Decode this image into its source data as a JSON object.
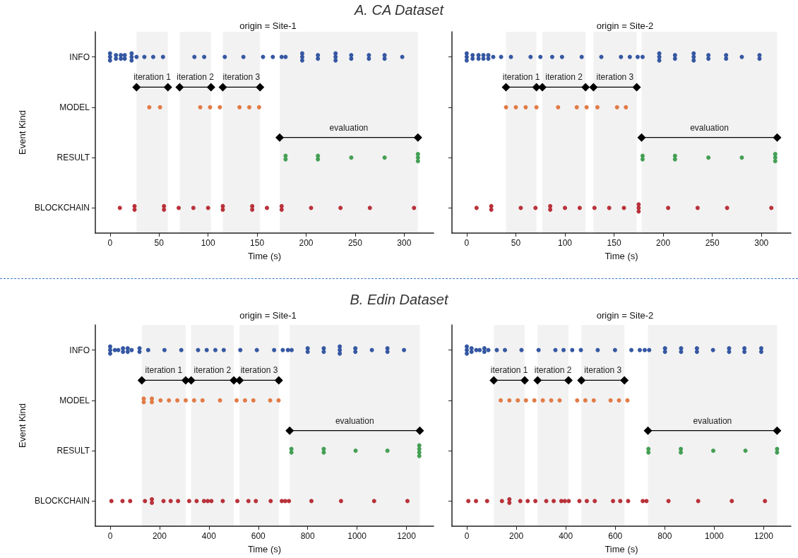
{
  "chart_data": [
    {
      "type": "scatter",
      "title": "origin = Site-1",
      "annotations": [
        "A. CA Dataset"
      ],
      "xlabel": "Time (s)",
      "ylabel": "Event Kind",
      "categories": [
        "INFO",
        "MODEL",
        "RESULT",
        "BLOCKCHAIN"
      ],
      "orientation": "horizontal",
      "xlim": [
        -15,
        330
      ],
      "xticks": [
        0,
        50,
        100,
        150,
        200,
        250,
        300
      ],
      "marker": "circle",
      "series": [
        {
          "color": "#2b4f9e",
          "values": [
            0,
            0,
            0,
            6,
            6,
            11,
            11,
            15,
            15,
            22,
            22,
            22,
            27,
            35,
            44,
            54,
            86,
            96,
            117,
            136,
            156,
            166,
            175,
            179,
            196,
            196,
            196,
            212,
            212,
            230,
            230,
            230,
            246,
            246,
            264,
            264,
            280,
            280,
            298
          ],
          "x": [
            "INFO",
            "INFO",
            "INFO",
            "INFO",
            "INFO",
            "INFO",
            "INFO",
            "INFO",
            "INFO",
            "INFO",
            "INFO",
            "INFO",
            "INFO",
            "INFO",
            "INFO",
            "INFO",
            "INFO",
            "INFO",
            "INFO",
            "INFO",
            "INFO",
            "INFO",
            "INFO",
            "INFO",
            "INFO",
            "INFO",
            "INFO",
            "INFO",
            "INFO",
            "INFO",
            "INFO",
            "INFO",
            "INFO",
            "INFO",
            "INFO",
            "INFO",
            "INFO",
            "INFO",
            "INFO"
          ]
        },
        {
          "color": "#e0743c",
          "values": [
            40,
            51,
            92,
            102,
            112,
            132,
            142,
            152
          ],
          "x": [
            "MODEL",
            "MODEL",
            "MODEL",
            "MODEL",
            "MODEL",
            "MODEL",
            "MODEL",
            "MODEL"
          ]
        },
        {
          "color": "#3b9a4c",
          "values": [
            179,
            179,
            212,
            212,
            246,
            280,
            314,
            314,
            314
          ],
          "x": [
            "RESULT",
            "RESULT",
            "RESULT",
            "RESULT",
            "RESULT",
            "RESULT",
            "RESULT",
            "RESULT",
            "RESULT"
          ]
        },
        {
          "color": "#b5272f",
          "values": [
            10,
            25,
            25,
            55,
            55,
            70,
            85,
            100,
            115,
            115,
            145,
            145,
            160,
            175,
            175,
            205,
            235,
            265,
            310
          ],
          "x": [
            "BLOCKCHAIN",
            "BLOCKCHAIN",
            "BLOCKCHAIN",
            "BLOCKCHAIN",
            "BLOCKCHAIN",
            "BLOCKCHAIN",
            "BLOCKCHAIN",
            "BLOCKCHAIN",
            "BLOCKCHAIN",
            "BLOCKCHAIN",
            "BLOCKCHAIN",
            "BLOCKCHAIN",
            "BLOCKCHAIN",
            "BLOCKCHAIN",
            "BLOCKCHAIN",
            "BLOCKCHAIN",
            "BLOCKCHAIN",
            "BLOCKCHAIN",
            "BLOCKCHAIN"
          ]
        }
      ],
      "bands": [
        {
          "axis": "x",
          "from": 27,
          "to": 59,
          "label": "iteration 1",
          "color": "#000000"
        },
        {
          "axis": "x",
          "from": 71,
          "to": 103,
          "label": "iteration 2",
          "color": "#000000"
        },
        {
          "axis": "x",
          "from": 115,
          "to": 153,
          "label": "iteration 3",
          "color": "#000000"
        },
        {
          "axis": "x",
          "from": 173,
          "to": 314,
          "label": "evaluation",
          "color": "#000000"
        }
      ]
    },
    {
      "type": "scatter",
      "title": "origin = Site-2",
      "xlabel": "Time (s)",
      "categories": [
        "INFO",
        "MODEL",
        "RESULT",
        "BLOCKCHAIN"
      ],
      "orientation": "horizontal",
      "xlim": [
        -15,
        330
      ],
      "xticks": [
        0,
        50,
        100,
        150,
        200,
        250,
        300
      ],
      "marker": "circle",
      "tick_labels": "x",
      "series": [
        {
          "color": "#2b4f9e",
          "values": [
            0,
            0,
            0,
            6,
            6,
            12,
            12,
            17,
            17,
            22,
            22,
            27,
            35,
            45,
            65,
            75,
            87,
            97,
            117,
            137,
            157,
            166,
            174,
            179,
            196,
            196,
            196,
            212,
            212,
            231,
            231,
            231,
            246,
            246,
            264,
            264,
            280,
            298,
            298
          ],
          "x": [
            "INFO",
            "INFO",
            "INFO",
            "INFO",
            "INFO",
            "INFO",
            "INFO",
            "INFO",
            "INFO",
            "INFO",
            "INFO",
            "INFO",
            "INFO",
            "INFO",
            "INFO",
            "INFO",
            "INFO",
            "INFO",
            "INFO",
            "INFO",
            "INFO",
            "INFO",
            "INFO",
            "INFO",
            "INFO",
            "INFO",
            "INFO",
            "INFO",
            "INFO",
            "INFO",
            "INFO",
            "INFO",
            "INFO",
            "INFO",
            "INFO",
            "INFO",
            "INFO",
            "INFO",
            "INFO"
          ]
        },
        {
          "color": "#e0743c",
          "values": [
            40,
            50,
            60,
            71,
            93,
            112,
            122,
            133,
            153,
            162
          ],
          "x": [
            "MODEL",
            "MODEL",
            "MODEL",
            "MODEL",
            "MODEL",
            "MODEL",
            "MODEL",
            "MODEL",
            "MODEL",
            "MODEL"
          ]
        },
        {
          "color": "#3b9a4c",
          "values": [
            179,
            179,
            212,
            212,
            246,
            280,
            314,
            314,
            314
          ],
          "x": [
            "RESULT",
            "RESULT",
            "RESULT",
            "RESULT",
            "RESULT",
            "RESULT",
            "RESULT",
            "RESULT",
            "RESULT"
          ]
        },
        {
          "color": "#b5272f",
          "values": [
            10,
            25,
            25,
            55,
            70,
            85,
            85,
            100,
            115,
            130,
            145,
            160,
            175,
            175,
            175,
            205,
            235,
            265,
            310
          ],
          "x": [
            "BLOCKCHAIN",
            "BLOCKCHAIN",
            "BLOCKCHAIN",
            "BLOCKCHAIN",
            "BLOCKCHAIN",
            "BLOCKCHAIN",
            "BLOCKCHAIN",
            "BLOCKCHAIN",
            "BLOCKCHAIN",
            "BLOCKCHAIN",
            "BLOCKCHAIN",
            "BLOCKCHAIN",
            "BLOCKCHAIN",
            "BLOCKCHAIN",
            "BLOCKCHAIN",
            "BLOCKCHAIN",
            "BLOCKCHAIN",
            "BLOCKCHAIN",
            "BLOCKCHAIN"
          ]
        }
      ],
      "bands": [
        {
          "axis": "x",
          "from": 40,
          "to": 71,
          "label": "iteration 1",
          "color": "#000000"
        },
        {
          "axis": "x",
          "from": 77,
          "to": 121,
          "label": "iteration 2",
          "color": "#000000"
        },
        {
          "axis": "x",
          "from": 129,
          "to": 173,
          "label": "iteration 3",
          "color": "#000000"
        },
        {
          "axis": "x",
          "from": 178,
          "to": 316,
          "label": "evaluation",
          "color": "#000000"
        }
      ]
    },
    {
      "type": "scatter",
      "title": "origin = Site-1",
      "annotations": [
        "B. Edin Dataset"
      ],
      "xlabel": "Time (s)",
      "ylabel": "Event Kind",
      "categories": [
        "INFO",
        "MODEL",
        "RESULT",
        "BLOCKCHAIN"
      ],
      "orientation": "horizontal",
      "xlim": [
        -60,
        1310
      ],
      "xticks": [
        0,
        200,
        400,
        600,
        800,
        1000,
        1200
      ],
      "marker": "circle",
      "series": [
        {
          "color": "#2b4f9e",
          "values": [
            0,
            0,
            0,
            19,
            33,
            52,
            52,
            71,
            71,
            87,
            119,
            119,
            154,
            220,
            288,
            356,
            391,
            426,
            460,
            527,
            594,
            664,
            699,
            720,
            735,
            800,
            800,
            865,
            865,
            930,
            930,
            930,
            993,
            993,
            1060,
            1123,
            1123,
            1190
          ],
          "x": [
            "INFO",
            "INFO",
            "INFO",
            "INFO",
            "INFO",
            "INFO",
            "INFO",
            "INFO",
            "INFO",
            "INFO",
            "INFO",
            "INFO",
            "INFO",
            "INFO",
            "INFO",
            "INFO",
            "INFO",
            "INFO",
            "INFO",
            "INFO",
            "INFO",
            "INFO",
            "INFO",
            "INFO",
            "INFO",
            "INFO",
            "INFO",
            "INFO",
            "INFO",
            "INFO",
            "INFO",
            "INFO",
            "INFO",
            "INFO",
            "INFO",
            "INFO",
            "INFO",
            "INFO"
          ]
        },
        {
          "color": "#e0743c",
          "values": [
            136,
            136,
            169,
            169,
            204,
            238,
            272,
            306,
            340,
            374,
            445,
            512,
            546,
            580,
            648,
            682
          ],
          "x": [
            "MODEL",
            "MODEL",
            "MODEL",
            "MODEL",
            "MODEL",
            "MODEL",
            "MODEL",
            "MODEL",
            "MODEL",
            "MODEL",
            "MODEL",
            "MODEL",
            "MODEL",
            "MODEL",
            "MODEL",
            "MODEL"
          ]
        },
        {
          "color": "#3b9a4c",
          "values": [
            734,
            734,
            865,
            865,
            994,
            1123,
            1252,
            1252,
            1252,
            1252
          ],
          "x": [
            "RESULT",
            "RESULT",
            "RESULT",
            "RESULT",
            "RESULT",
            "RESULT",
            "RESULT",
            "RESULT",
            "RESULT",
            "RESULT"
          ]
        },
        {
          "color": "#b5272f",
          "values": [
            5,
            50,
            81,
            141,
            169,
            169,
            216,
            245,
            275,
            320,
            350,
            380,
            395,
            410,
            456,
            515,
            560,
            590,
            650,
            695,
            709,
            724,
            815,
            935,
            1069,
            1204
          ],
          "x": [
            "BLOCKCHAIN",
            "BLOCKCHAIN",
            "BLOCKCHAIN",
            "BLOCKCHAIN",
            "BLOCKCHAIN",
            "BLOCKCHAIN",
            "BLOCKCHAIN",
            "BLOCKCHAIN",
            "BLOCKCHAIN",
            "BLOCKCHAIN",
            "BLOCKCHAIN",
            "BLOCKCHAIN",
            "BLOCKCHAIN",
            "BLOCKCHAIN",
            "BLOCKCHAIN",
            "BLOCKCHAIN",
            "BLOCKCHAIN",
            "BLOCKCHAIN",
            "BLOCKCHAIN",
            "BLOCKCHAIN",
            "BLOCKCHAIN",
            "BLOCKCHAIN",
            "BLOCKCHAIN",
            "BLOCKCHAIN",
            "BLOCKCHAIN",
            "BLOCKCHAIN"
          ]
        }
      ],
      "bands": [
        {
          "axis": "x",
          "from": 128,
          "to": 306,
          "label": "iteration 1",
          "color": "#000000"
        },
        {
          "axis": "x",
          "from": 328,
          "to": 501,
          "label": "iteration 2",
          "color": "#000000"
        },
        {
          "axis": "x",
          "from": 524,
          "to": 683,
          "label": "iteration 3",
          "color": "#000000"
        },
        {
          "axis": "x",
          "from": 727,
          "to": 1254,
          "label": "evaluation",
          "color": "#000000"
        }
      ]
    },
    {
      "type": "scatter",
      "title": "origin = Site-2",
      "xlabel": "Time (s)",
      "categories": [
        "INFO",
        "MODEL",
        "RESULT",
        "BLOCKCHAIN"
      ],
      "orientation": "horizontal",
      "xlim": [
        -60,
        1310
      ],
      "xticks": [
        0,
        200,
        400,
        600,
        800,
        1000,
        1200
      ],
      "marker": "circle",
      "tick_labels": "x",
      "series": [
        {
          "color": "#2b4f9e",
          "values": [
            0,
            0,
            0,
            19,
            19,
            38,
            52,
            71,
            71,
            87,
            121,
            154,
            221,
            290,
            358,
            391,
            426,
            461,
            529,
            599,
            665,
            699,
            719,
            737,
            801,
            801,
            866,
            866,
            930,
            930,
            995,
            1060,
            1060,
            1122,
            1122,
            1190,
            1190
          ],
          "x": [
            "INFO",
            "INFO",
            "INFO",
            "INFO",
            "INFO",
            "INFO",
            "INFO",
            "INFO",
            "INFO",
            "INFO",
            "INFO",
            "INFO",
            "INFO",
            "INFO",
            "INFO",
            "INFO",
            "INFO",
            "INFO",
            "INFO",
            "INFO",
            "INFO",
            "INFO",
            "INFO",
            "INFO",
            "INFO",
            "INFO",
            "INFO",
            "INFO",
            "INFO",
            "INFO",
            "INFO",
            "INFO",
            "INFO",
            "INFO",
            "INFO",
            "INFO",
            "INFO"
          ]
        },
        {
          "color": "#e0743c",
          "values": [
            137,
            172,
            206,
            239,
            273,
            307,
            341,
            375,
            446,
            479,
            513,
            581,
            615,
            649
          ],
          "x": [
            "MODEL",
            "MODEL",
            "MODEL",
            "MODEL",
            "MODEL",
            "MODEL",
            "MODEL",
            "MODEL",
            "MODEL",
            "MODEL",
            "MODEL",
            "MODEL",
            "MODEL",
            "MODEL"
          ]
        },
        {
          "color": "#3b9a4c",
          "values": [
            734,
            734,
            865,
            865,
            996,
            1126,
            1254,
            1254
          ],
          "x": [
            "RESULT",
            "RESULT",
            "RESULT",
            "RESULT",
            "RESULT",
            "RESULT",
            "RESULT",
            "RESULT"
          ]
        },
        {
          "color": "#b5272f",
          "values": [
            6,
            37,
            82,
            142,
            172,
            172,
            216,
            246,
            277,
            321,
            351,
            382,
            396,
            412,
            455,
            485,
            517,
            591,
            620,
            652,
            711,
            726,
            815,
            935,
            1071,
            1205
          ],
          "x": [
            "BLOCKCHAIN",
            "BLOCKCHAIN",
            "BLOCKCHAIN",
            "BLOCKCHAIN",
            "BLOCKCHAIN",
            "BLOCKCHAIN",
            "BLOCKCHAIN",
            "BLOCKCHAIN",
            "BLOCKCHAIN",
            "BLOCKCHAIN",
            "BLOCKCHAIN",
            "BLOCKCHAIN",
            "BLOCKCHAIN",
            "BLOCKCHAIN",
            "BLOCKCHAIN",
            "BLOCKCHAIN",
            "BLOCKCHAIN",
            "BLOCKCHAIN",
            "BLOCKCHAIN",
            "BLOCKCHAIN",
            "BLOCKCHAIN",
            "BLOCKCHAIN",
            "BLOCKCHAIN",
            "BLOCKCHAIN",
            "BLOCKCHAIN",
            "BLOCKCHAIN"
          ]
        }
      ],
      "bands": [
        {
          "axis": "x",
          "from": 109,
          "to": 234,
          "label": "iteration 1",
          "color": "#000000"
        },
        {
          "axis": "x",
          "from": 286,
          "to": 411,
          "label": "iteration 2",
          "color": "#000000"
        },
        {
          "axis": "x",
          "from": 463,
          "to": 637,
          "label": "iteration 3",
          "color": "#000000"
        },
        {
          "axis": "x",
          "from": 732,
          "to": 1254,
          "label": "evaluation",
          "color": "#000000"
        }
      ]
    }
  ]
}
